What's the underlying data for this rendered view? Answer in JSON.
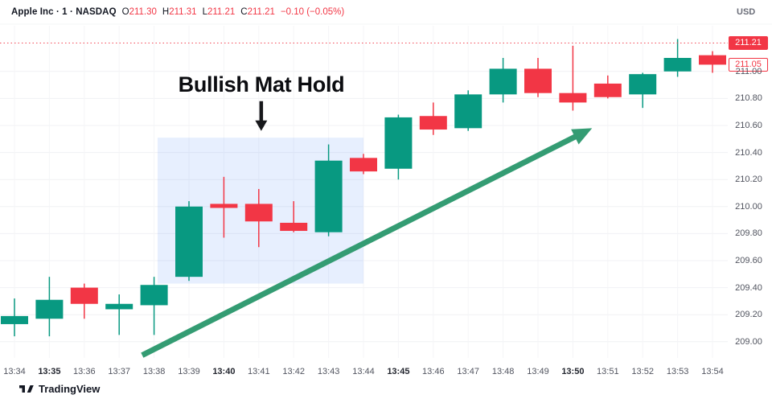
{
  "header": {
    "symbol_line": "Apple Inc · 1 · NASDAQ",
    "ohlc": [
      {
        "label": "O",
        "value": "211.30"
      },
      {
        "label": "H",
        "value": "211.31"
      },
      {
        "label": "L",
        "value": "211.21"
      },
      {
        "label": "C",
        "value": "211.21"
      }
    ],
    "change": "−0.10 (−0.05%)",
    "currency": "USD"
  },
  "colors": {
    "up": "#089981",
    "down": "#f23645",
    "trend_arrow": "#349c73",
    "grid": "#f0f1f4",
    "axis_text": "#51545f",
    "price_line": "#f23645",
    "highlight_box_fill": "rgba(66,133,244,0.13)",
    "annotation_black": "#17181b"
  },
  "chart_data": {
    "type": "candlestick",
    "title": "Apple Inc 1-minute chart (NASDAQ)",
    "x": [
      "13:34",
      "13:35",
      "13:36",
      "13:37",
      "13:38",
      "13:39",
      "13:40",
      "13:41",
      "13:42",
      "13:43",
      "13:44",
      "13:45",
      "13:46",
      "13:47",
      "13:48",
      "13:49",
      "13:50",
      "13:51",
      "13:52",
      "13:53",
      "13:54"
    ],
    "bold_x_ticks": [
      "13:35",
      "13:40",
      "13:45",
      "13:50"
    ],
    "series": [
      {
        "name": "AAPL 1m OHLC",
        "ohlc": [
          [
            209.13,
            209.32,
            209.04,
            209.19
          ],
          [
            209.17,
            209.48,
            209.04,
            209.31
          ],
          [
            209.4,
            209.43,
            209.17,
            209.28
          ],
          [
            209.24,
            209.35,
            209.05,
            209.28
          ],
          [
            209.27,
            209.48,
            209.05,
            209.42
          ],
          [
            209.48,
            210.04,
            209.45,
            210.0
          ],
          [
            210.02,
            210.22,
            209.77,
            209.99
          ],
          [
            210.02,
            210.13,
            209.7,
            209.89
          ],
          [
            209.88,
            210.04,
            209.81,
            209.82
          ],
          [
            209.81,
            210.46,
            209.78,
            210.34
          ],
          [
            210.36,
            210.39,
            210.24,
            210.26
          ],
          [
            210.28,
            210.68,
            210.2,
            210.66
          ],
          [
            210.67,
            210.77,
            210.53,
            210.57
          ],
          [
            210.58,
            210.86,
            210.56,
            210.83
          ],
          [
            210.83,
            211.1,
            210.77,
            211.02
          ],
          [
            211.02,
            211.1,
            210.81,
            210.84
          ],
          [
            210.84,
            211.19,
            210.71,
            210.77
          ],
          [
            210.91,
            210.97,
            210.8,
            210.81
          ],
          [
            210.83,
            210.99,
            210.73,
            210.98
          ],
          [
            211.0,
            211.24,
            210.96,
            211.1
          ],
          [
            211.12,
            211.15,
            210.99,
            211.05
          ]
        ]
      }
    ],
    "y_ticks": [
      {
        "value": 211.0,
        "label": "211.00"
      },
      {
        "value": 210.8,
        "label": "210.80"
      },
      {
        "value": 210.6,
        "label": "210.60"
      },
      {
        "value": 210.4,
        "label": "210.40"
      },
      {
        "value": 210.2,
        "label": "210.20"
      },
      {
        "value": 210.0,
        "label": "210.00"
      },
      {
        "value": 209.8,
        "label": "209.80"
      },
      {
        "value": 209.6,
        "label": "209.60"
      },
      {
        "value": 209.4,
        "label": "209.40"
      },
      {
        "value": 209.2,
        "label": "209.20"
      },
      {
        "value": 209.0,
        "label": "209.00"
      }
    ],
    "ylim": [
      208.88,
      211.35
    ],
    "grid": true,
    "legend_position": "none",
    "price_line": {
      "value": 211.21,
      "label": "211.21"
    },
    "last_close_badge": {
      "value": 211.05,
      "label": "211.05"
    }
  },
  "annotations": {
    "pattern_label": "Bullish Mat Hold",
    "highlight_box": {
      "time_start": "13:38",
      "time_end": "13:44",
      "index_start": 4.1,
      "index_end": 10.0,
      "price_top": 210.51,
      "price_bottom": 209.43
    },
    "down_arrow": {
      "index": 7.07,
      "price_top": 210.78,
      "price_tip": 210.56
    },
    "trend_arrow": {
      "index_start": 3.66,
      "price_start": 208.9,
      "index_end": 16.55,
      "price_end": 210.58
    }
  },
  "watermark": {
    "brand": "TradingView"
  }
}
